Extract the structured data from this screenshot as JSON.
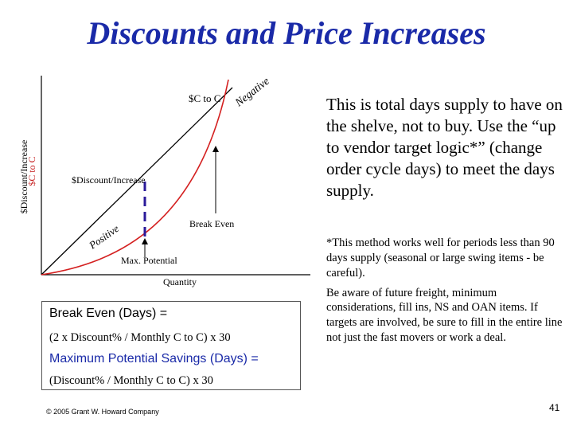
{
  "slide": {
    "title": "Discounts and Price Increases",
    "page_number": "41",
    "copyright": "© 2005 Grant W. Howard Company"
  },
  "diagram": {
    "y_axis_label_line1": "$Discount/Increase",
    "y_axis_label_line2": "$C to C",
    "x_axis_label": "Quantity",
    "line_label": "$C to C",
    "diagonal_label": "$Discount/Increase",
    "negative_label": "Negative",
    "positive_label": "Positive",
    "break_even_label": "Break Even",
    "max_potential_label": "Max. Potential",
    "colors": {
      "curve": "#d42020",
      "line": "#000000",
      "dashed": "#2a1a9a"
    }
  },
  "formulas": {
    "break_even_title": "Break Even (Days) =",
    "break_even_formula": "(2 x Discount% / Monthly C to C) x 30",
    "max_savings_title": "Maximum Potential Savings (Days) =",
    "max_savings_formula": "(Discount% / Monthly C to C) x 30"
  },
  "right_text": {
    "main": "This is total days supply to have on the shelve, not to buy.  Use the “up to vendor target logic*” (change order cycle days) to meet the days supply.",
    "note1": "*This method works well for periods less than 90 days supply (seasonal or large swing items - be careful).",
    "note2": "Be aware of future freight, minimum considerations, fill ins, NS and OAN items.  If targets are involved, be sure to fill in the entire line not just the fast movers or work a deal."
  }
}
